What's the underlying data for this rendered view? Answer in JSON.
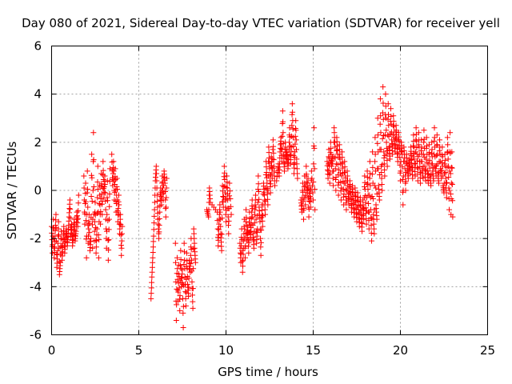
{
  "chart_data": {
    "type": "scatter",
    "title": "Day 080 of 2021, Sidereal Day-to-day VTEC variation (SDTVAR) for receiver yell",
    "xlabel": "GPS time / hours",
    "ylabel": "SDTVAR / TECUs",
    "xlim": [
      0,
      25
    ],
    "ylim": [
      -6,
      6
    ],
    "xticks": [
      0,
      5,
      10,
      15,
      20,
      25
    ],
    "yticks": [
      -6,
      -4,
      -2,
      0,
      2,
      4,
      6
    ],
    "grid": true,
    "marker": "+",
    "colors": {
      "series": "#ff0000",
      "grid": "#a0a0a0",
      "frame": "#000000"
    },
    "segments": [
      [
        [
          0.0,
          -1.5
        ],
        [
          0.05,
          -2.6
        ],
        [
          0.1,
          -1.2
        ],
        [
          0.15,
          -2.8
        ],
        [
          0.2,
          -1.9
        ],
        [
          0.25,
          -1.0
        ],
        [
          0.3,
          -3.2
        ],
        [
          0.35,
          -2.5
        ],
        [
          0.4,
          -1.3
        ],
        [
          0.45,
          -3.5
        ],
        [
          0.5,
          -3.0
        ],
        [
          0.55,
          -1.7
        ],
        [
          0.6,
          -2.9
        ],
        [
          0.65,
          -2.2
        ],
        [
          0.7,
          -1.5
        ],
        [
          0.75,
          -2.6
        ],
        [
          0.8,
          -2.0
        ],
        [
          0.85,
          -1.6
        ],
        [
          0.9,
          -2.3
        ],
        [
          0.95,
          -1.8
        ],
        [
          1.0,
          -1.1
        ],
        [
          1.05,
          -0.4
        ],
        [
          1.1,
          -1.9
        ],
        [
          1.15,
          -1.4
        ],
        [
          1.2,
          -2.3
        ],
        [
          1.25,
          -1.8
        ],
        [
          1.3,
          -1.2
        ],
        [
          1.35,
          -2.1
        ],
        [
          1.4,
          -1.7
        ],
        [
          1.45,
          -0.9
        ],
        [
          1.5,
          -1.5
        ],
        [
          1.55,
          -0.2
        ]
      ],
      [
        [
          1.85,
          0.6
        ],
        [
          1.9,
          -1.4
        ],
        [
          1.95,
          0.3
        ],
        [
          2.0,
          -2.8
        ],
        [
          2.05,
          0.8
        ],
        [
          2.1,
          -2.2
        ],
        [
          2.15,
          -1.0
        ],
        [
          2.2,
          -2.5
        ],
        [
          2.25,
          -2.0
        ],
        [
          2.3,
          1.5
        ],
        [
          2.35,
          -2.4
        ],
        [
          2.4,
          2.4
        ],
        [
          2.45,
          -2.1
        ],
        [
          2.5,
          -0.5
        ],
        [
          2.55,
          -2.6
        ],
        [
          2.6,
          -1.6
        ],
        [
          2.65,
          1.0
        ],
        [
          2.7,
          -2.8
        ],
        [
          2.75,
          0.2
        ],
        [
          2.8,
          -1.4
        ],
        [
          2.85,
          0.7
        ],
        [
          2.9,
          -1.0
        ],
        [
          2.95,
          1.2
        ],
        [
          3.0,
          -0.3
        ],
        [
          3.05,
          0.6
        ],
        [
          3.1,
          -0.8
        ],
        [
          3.15,
          -2.4
        ],
        [
          3.2,
          0.4
        ],
        [
          3.25,
          -2.9
        ],
        [
          3.3,
          -1.2
        ],
        [
          3.35,
          0.9
        ]
      ],
      [
        [
          3.45,
          1.5
        ],
        [
          3.5,
          0.2
        ],
        [
          3.55,
          1.2
        ],
        [
          3.6,
          -0.4
        ],
        [
          3.65,
          0.9
        ],
        [
          3.7,
          -0.9
        ],
        [
          3.75,
          0.5
        ],
        [
          3.8,
          -1.3
        ],
        [
          3.85,
          -0.2
        ],
        [
          3.9,
          -1.8
        ],
        [
          3.95,
          -1.0
        ],
        [
          4.0,
          -2.7
        ],
        [
          4.05,
          -1.5
        ]
      ],
      [
        [
          5.7,
          -4.5
        ],
        [
          5.75,
          -3.6
        ],
        [
          5.8,
          -2.8
        ],
        [
          5.85,
          -1.9
        ],
        [
          5.9,
          -0.8
        ],
        [
          5.95,
          0.4
        ],
        [
          6.0,
          1.0
        ],
        [
          6.05,
          -0.2
        ],
        [
          6.1,
          -1.2
        ],
        [
          6.15,
          -2.0
        ],
        [
          6.2,
          -0.9
        ],
        [
          6.25,
          0.1
        ],
        [
          6.3,
          -0.6
        ],
        [
          6.35,
          0.6
        ],
        [
          6.4,
          -0.4
        ],
        [
          6.45,
          0.8
        ],
        [
          6.5,
          0.3
        ],
        [
          6.55,
          -1.1
        ],
        [
          6.6,
          0.5
        ]
      ],
      [
        [
          7.1,
          -2.2
        ],
        [
          7.15,
          -5.4
        ],
        [
          7.2,
          -2.8
        ],
        [
          7.25,
          -4.6
        ],
        [
          7.3,
          -3.1
        ],
        [
          7.35,
          -5.0
        ],
        [
          7.4,
          -2.5
        ],
        [
          7.45,
          -4.0
        ],
        [
          7.5,
          -3.3
        ],
        [
          7.55,
          -5.7
        ],
        [
          7.6,
          -2.2
        ],
        [
          7.65,
          -3.6
        ],
        [
          7.7,
          -4.8
        ],
        [
          7.75,
          -2.6
        ],
        [
          7.8,
          -3.9
        ],
        [
          7.85,
          -4.4
        ],
        [
          7.9,
          -2.9
        ],
        [
          7.95,
          -3.4
        ],
        [
          8.0,
          -2.0
        ],
        [
          8.05,
          -3.8
        ],
        [
          8.1,
          -4.9
        ],
        [
          8.15,
          -1.6
        ],
        [
          8.2,
          -2.4
        ],
        [
          8.25,
          -3.0
        ]
      ],
      [
        [
          8.9,
          -0.8
        ],
        [
          9.0,
          -1.1
        ],
        [
          9.05,
          0.1
        ],
        [
          9.1,
          -0.5
        ],
        [
          9.5,
          -0.9
        ],
        [
          9.55,
          -2.3
        ],
        [
          9.6,
          -1.4
        ],
        [
          9.65,
          -0.6
        ],
        [
          9.7,
          -1.8
        ],
        [
          9.75,
          -2.5
        ],
        [
          9.8,
          0.2
        ],
        [
          9.85,
          -0.7
        ],
        [
          9.9,
          1.0
        ],
        [
          9.95,
          -0.1
        ],
        [
          10.0,
          -1.3
        ],
        [
          10.05,
          0.6
        ],
        [
          10.1,
          -0.4
        ],
        [
          10.15,
          -1.8
        ],
        [
          10.2,
          0.3
        ],
        [
          10.3,
          -1.0
        ]
      ],
      [
        [
          10.8,
          -2.2
        ],
        [
          10.85,
          -3.0
        ],
        [
          10.9,
          -1.6
        ],
        [
          10.95,
          -3.4
        ],
        [
          11.0,
          -2.4
        ],
        [
          11.05,
          -1.2
        ],
        [
          11.1,
          -2.8
        ],
        [
          11.15,
          -0.8
        ],
        [
          11.2,
          -2.1
        ],
        [
          11.25,
          -1.5
        ],
        [
          11.3,
          -2.6
        ],
        [
          11.35,
          -0.9
        ],
        [
          11.4,
          -2.0
        ],
        [
          11.45,
          -1.4
        ],
        [
          11.5,
          -0.4
        ],
        [
          11.55,
          -1.8
        ],
        [
          11.6,
          -2.4
        ],
        [
          11.65,
          -1.0
        ],
        [
          11.7,
          -0.2
        ],
        [
          11.75,
          -2.2
        ],
        [
          11.8,
          -1.6
        ],
        [
          11.85,
          0.6
        ],
        [
          11.9,
          -0.7
        ],
        [
          11.95,
          -1.3
        ],
        [
          12.0,
          -2.7
        ],
        [
          12.05,
          -0.6
        ],
        [
          12.1,
          -1.5
        ],
        [
          12.15,
          0.3
        ],
        [
          12.2,
          -0.2
        ],
        [
          12.25,
          -1.0
        ],
        [
          12.3,
          1.2
        ],
        [
          12.35,
          0.3
        ],
        [
          12.4,
          -0.6
        ],
        [
          12.45,
          1.8
        ],
        [
          12.5,
          0.9
        ],
        [
          12.55,
          -0.1
        ],
        [
          12.6,
          1.4
        ],
        [
          12.65,
          0.5
        ],
        [
          12.7,
          2.1
        ],
        [
          12.75,
          1.0
        ],
        [
          12.8,
          0.2
        ]
      ],
      [
        [
          12.9,
          0.4
        ],
        [
          13.0,
          1.1
        ],
        [
          13.05,
          0.6
        ],
        [
          13.1,
          1.6
        ],
        [
          13.15,
          2.2
        ],
        [
          13.2,
          1.2
        ],
        [
          13.25,
          3.3
        ],
        [
          13.3,
          1.5
        ],
        [
          13.35,
          0.8
        ],
        [
          13.4,
          2.0
        ],
        [
          13.45,
          1.2
        ],
        [
          13.5,
          1.7
        ],
        [
          13.55,
          0.9
        ],
        [
          13.6,
          1.4
        ],
        [
          13.65,
          2.6
        ],
        [
          13.7,
          1.1
        ],
        [
          13.75,
          1.8
        ],
        [
          13.8,
          3.6
        ],
        [
          13.85,
          2.2
        ],
        [
          13.9,
          0.7
        ],
        [
          13.95,
          1.6
        ],
        [
          14.0,
          2.9
        ],
        [
          14.05,
          1.3
        ],
        [
          14.1,
          0.5
        ]
      ],
      [
        [
          14.3,
          -0.4
        ],
        [
          14.35,
          -0.9
        ],
        [
          14.4,
          0.3
        ],
        [
          14.45,
          -1.2
        ],
        [
          14.5,
          0.6
        ],
        [
          14.55,
          -0.6
        ],
        [
          14.6,
          1.0
        ],
        [
          14.65,
          -0.3
        ],
        [
          14.7,
          0.5
        ],
        [
          14.75,
          -1.1
        ],
        [
          14.8,
          0.2
        ],
        [
          14.85,
          -0.7
        ],
        [
          14.9,
          0.8
        ],
        [
          15.0,
          -0.4
        ],
        [
          15.05,
          2.6
        ],
        [
          15.1,
          -0.8
        ]
      ],
      [
        [
          15.8,
          1.2
        ],
        [
          15.85,
          0.5
        ],
        [
          15.9,
          1.7
        ],
        [
          15.95,
          0.3
        ],
        [
          16.0,
          2.0
        ],
        [
          16.05,
          1.0
        ],
        [
          16.1,
          1.4
        ],
        [
          16.15,
          0.2
        ],
        [
          16.2,
          2.6
        ],
        [
          16.25,
          1.8
        ],
        [
          16.3,
          0.0
        ],
        [
          16.35,
          2.2
        ],
        [
          16.4,
          1.5
        ],
        [
          16.45,
          -0.2
        ],
        [
          16.5,
          1.9
        ],
        [
          16.55,
          1.1
        ],
        [
          16.6,
          -0.4
        ],
        [
          16.65,
          1.6
        ],
        [
          16.7,
          0.7
        ],
        [
          16.75,
          -0.6
        ],
        [
          16.8,
          1.2
        ],
        [
          16.85,
          0.3
        ],
        [
          16.9,
          -0.8
        ],
        [
          16.95,
          0.8
        ],
        [
          17.0,
          0.0
        ],
        [
          17.05,
          -0.6
        ],
        [
          17.1,
          0.4
        ],
        [
          17.15,
          -0.2
        ],
        [
          17.2,
          -0.9
        ],
        [
          17.25,
          0.2
        ],
        [
          17.3,
          -0.4
        ],
        [
          17.35,
          -1.1
        ],
        [
          17.4,
          0.1
        ],
        [
          17.45,
          -0.6
        ],
        [
          17.5,
          -1.3
        ],
        [
          17.55,
          -0.1
        ],
        [
          17.6,
          -0.8
        ],
        [
          17.65,
          -1.5
        ],
        [
          17.7,
          -0.3
        ],
        [
          17.75,
          -1.0
        ],
        [
          17.8,
          -1.7
        ],
        [
          17.85,
          -0.4
        ],
        [
          17.9,
          -1.2
        ],
        [
          17.95,
          0.6
        ],
        [
          18.0,
          -0.5
        ],
        [
          18.05,
          -1.4
        ],
        [
          18.1,
          0.8
        ],
        [
          18.15,
          -0.2
        ],
        [
          18.2,
          -1.6
        ],
        [
          18.25,
          1.2
        ],
        [
          18.3,
          -0.8
        ],
        [
          18.35,
          -2.1
        ],
        [
          18.4,
          1.6
        ],
        [
          18.45,
          -1.0
        ],
        [
          18.5,
          -1.8
        ],
        [
          18.55,
          2.2
        ],
        [
          18.6,
          -0.6
        ],
        [
          18.65,
          -1.2
        ],
        [
          18.7,
          3.0
        ],
        [
          18.75,
          0.2
        ],
        [
          18.8,
          -0.4
        ],
        [
          18.85,
          3.8
        ],
        [
          18.9,
          1.0
        ],
        [
          18.95,
          0.0
        ],
        [
          19.0,
          4.3
        ],
        [
          19.05,
          1.6
        ],
        [
          19.1,
          0.6
        ],
        [
          19.15,
          4.0
        ],
        [
          19.2,
          2.0
        ],
        [
          19.25,
          1.0
        ],
        [
          19.3,
          3.6
        ],
        [
          19.35,
          1.8
        ],
        [
          19.4,
          1.3
        ],
        [
          19.45,
          3.4
        ],
        [
          19.5,
          2.1
        ],
        [
          19.55,
          1.5
        ],
        [
          19.6,
          3.1
        ],
        [
          19.65,
          2.2
        ],
        [
          19.7,
          1.6
        ],
        [
          19.75,
          2.7
        ],
        [
          19.8,
          1.9
        ],
        [
          19.85,
          1.2
        ],
        [
          19.9,
          2.4
        ],
        [
          19.95,
          1.7
        ],
        [
          20.0,
          0.4
        ],
        [
          20.05,
          2.0
        ],
        [
          20.1,
          1.5
        ],
        [
          20.15,
          -0.6
        ],
        [
          20.2,
          1.8
        ],
        [
          20.25,
          1.2
        ],
        [
          20.3,
          0.0
        ],
        [
          20.35,
          1.5
        ],
        [
          20.4,
          0.9
        ],
        [
          20.45,
          0.5
        ],
        [
          20.5,
          1.3
        ],
        [
          20.55,
          0.7
        ],
        [
          20.6,
          1.8
        ],
        [
          20.65,
          1.1
        ],
        [
          20.7,
          0.5
        ],
        [
          20.75,
          2.3
        ],
        [
          20.8,
          1.3
        ],
        [
          20.85,
          0.6
        ],
        [
          20.9,
          2.6
        ],
        [
          20.95,
          1.5
        ],
        [
          21.0,
          0.4
        ],
        [
          21.05,
          2.4
        ],
        [
          21.1,
          1.2
        ],
        [
          21.15,
          0.3
        ],
        [
          21.2,
          2.1
        ],
        [
          21.25,
          0.9
        ],
        [
          21.3,
          0.5
        ],
        [
          21.35,
          2.5
        ],
        [
          21.4,
          1.0
        ],
        [
          21.45,
          0.4
        ],
        [
          21.5,
          2.2
        ],
        [
          21.55,
          0.8
        ],
        [
          21.6,
          0.3
        ],
        [
          21.65,
          1.9
        ],
        [
          21.7,
          0.6
        ],
        [
          21.75,
          0.2
        ],
        [
          21.8,
          2.0
        ],
        [
          21.85,
          0.8
        ],
        [
          21.9,
          0.4
        ],
        [
          21.95,
          2.6
        ],
        [
          22.0,
          1.0
        ],
        [
          22.05,
          0.6
        ],
        [
          22.1,
          2.3
        ],
        [
          22.15,
          0.7
        ],
        [
          22.2,
          0.3
        ],
        [
          22.25,
          2.1
        ],
        [
          22.3,
          0.9
        ],
        [
          22.35,
          0.5
        ],
        [
          22.4,
          1.8
        ],
        [
          22.45,
          0.2
        ],
        [
          22.5,
          -0.1
        ],
        [
          22.55,
          1.5
        ],
        [
          22.6,
          0.5
        ],
        [
          22.65,
          -0.3
        ],
        [
          22.7,
          2.2
        ],
        [
          22.75,
          1.0
        ],
        [
          22.8,
          -0.8
        ],
        [
          22.85,
          2.4
        ],
        [
          22.9,
          -1.0
        ],
        [
          22.95,
          1.6
        ],
        [
          23.0,
          -1.1
        ]
      ]
    ]
  }
}
